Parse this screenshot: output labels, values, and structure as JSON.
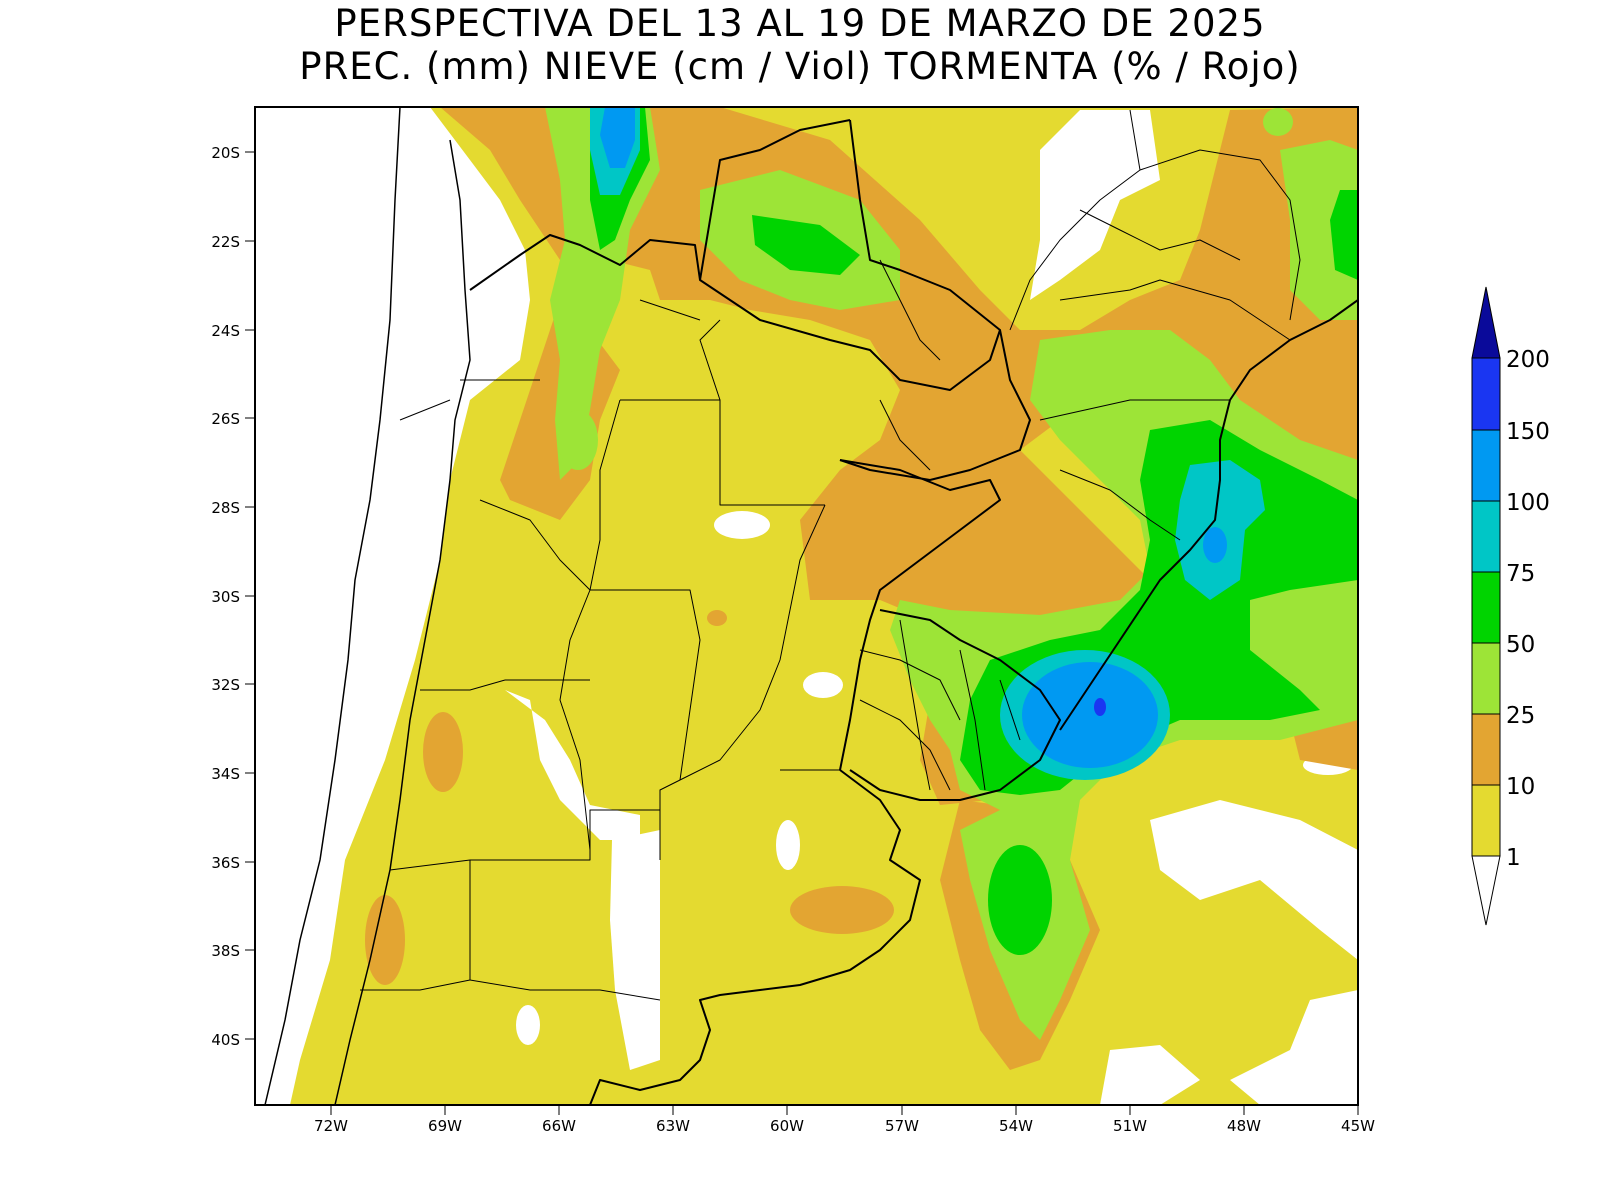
{
  "title_line1": "PERSPECTIVA DEL 13 AL 19 DE MARZO DE 2025",
  "title_line2": "PREC. (mm) NIEVE (cm / Viol) TORMENTA (% / Rojo)",
  "map": {
    "lat_labels": [
      "20S",
      "22S",
      "24S",
      "26S",
      "28S",
      "30S",
      "32S",
      "34S",
      "36S",
      "38S",
      "40S"
    ],
    "lon_labels": [
      "72W",
      "69W",
      "66W",
      "63W",
      "60W",
      "57W",
      "54W",
      "51W",
      "48W",
      "45W"
    ],
    "lat_range": [
      -41.5,
      -19
    ],
    "lon_range": [
      -74,
      -45
    ]
  },
  "colorbar": {
    "levels": [
      "1",
      "10",
      "25",
      "50",
      "75",
      "100",
      "150",
      "200"
    ],
    "colors": [
      "#ffffff",
      "#e4da30",
      "#e3a532",
      "#9de437",
      "#00d400",
      "#00c6c6",
      "#0099f2",
      "#1a36f2",
      "#0a0a9a"
    ]
  }
}
